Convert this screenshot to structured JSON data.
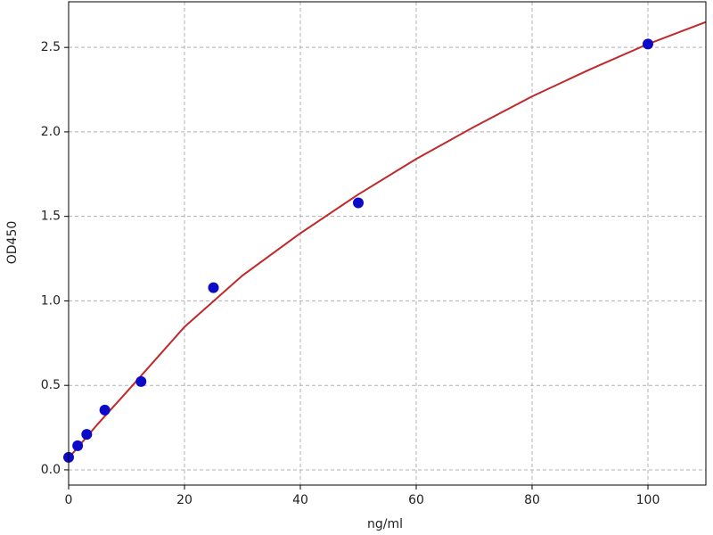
{
  "chart_data": {
    "type": "scatter",
    "xlabel": "ng/ml",
    "ylabel": "OD450",
    "x": [
      0,
      1.56,
      3.125,
      6.25,
      12.5,
      25,
      50,
      100
    ],
    "values": [
      0.074,
      0.143,
      0.21,
      0.354,
      0.523,
      1.078,
      1.58,
      2.52
    ],
    "color": "#0a0ac8",
    "fit": {
      "x": [
        0,
        5,
        10,
        20,
        30,
        40,
        50,
        60,
        70,
        80,
        90,
        100,
        110
      ],
      "values": [
        0.07,
        0.27,
        0.46,
        0.846,
        1.15,
        1.4,
        1.63,
        1.84,
        2.03,
        2.21,
        2.37,
        2.52,
        2.65
      ],
      "color": "#c0282a"
    },
    "xlim": [
      0,
      110
    ],
    "ylim": [
      -0.09,
      2.77
    ],
    "xticks": [
      0,
      20,
      40,
      60,
      80,
      100
    ],
    "yticks": [
      {
        "value": 0,
        "label": "0.0"
      },
      0.5,
      {
        "value": 1,
        "label": "1.0"
      },
      1.5,
      {
        "value": 2,
        "label": "2.0"
      },
      2.5
    ],
    "grid": true
  }
}
